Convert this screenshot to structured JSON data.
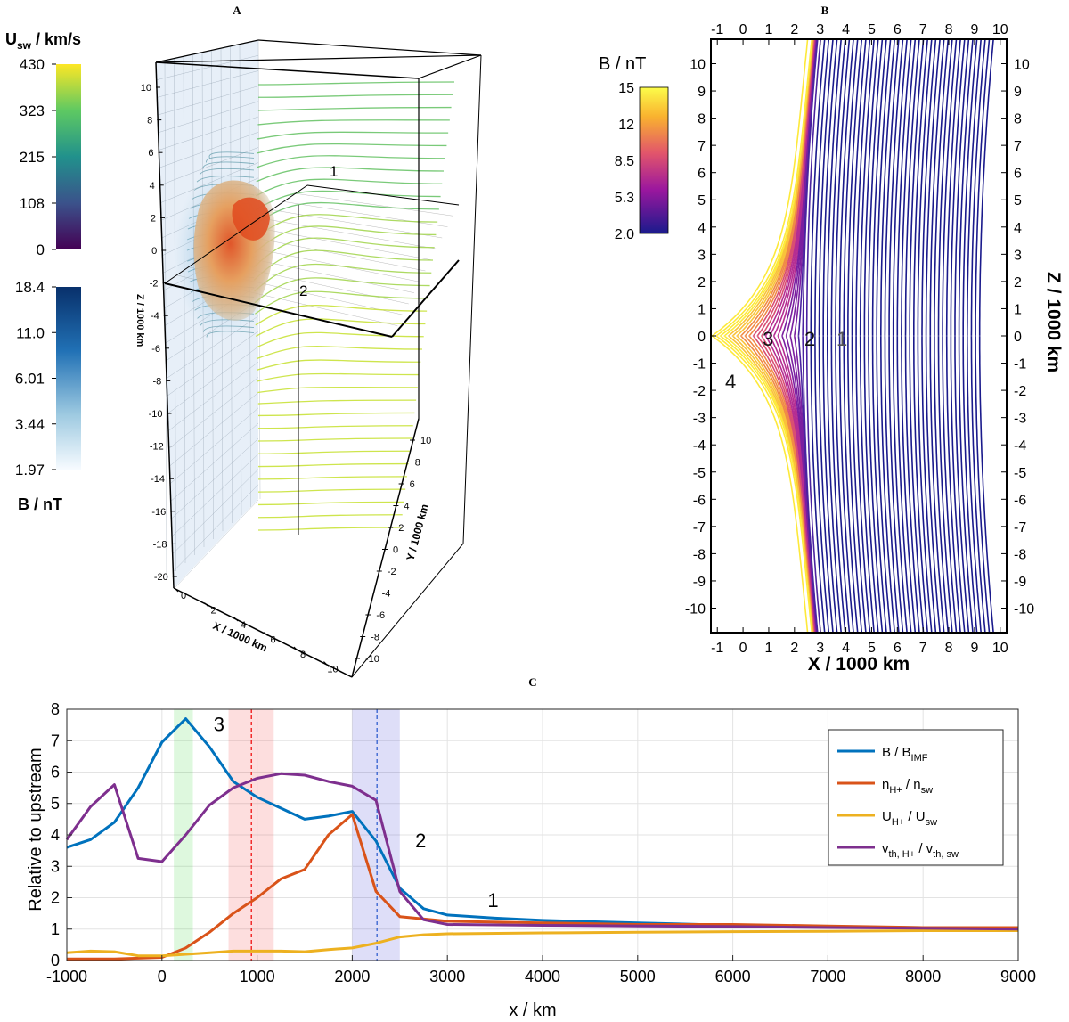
{
  "panels": {
    "a": "A",
    "b": "B",
    "c": "C"
  },
  "panel_a": {
    "usw_cbar": {
      "title": "U",
      "title_sub": "sw",
      "title_rest": " / km/s",
      "ticks": [
        "430",
        "323",
        "215",
        "108",
        "0"
      ]
    },
    "b_cbar": {
      "ticks": [
        "18.4",
        "11.0",
        "6.01",
        "3.44",
        "1.97"
      ],
      "label": "B / nT"
    },
    "z_ticks": [
      "10",
      "8",
      "6",
      "4",
      "2",
      "0",
      "-2",
      "-4",
      "-6",
      "-8",
      "-10",
      "-12",
      "-14",
      "-16",
      "-18",
      "-20"
    ],
    "x_ticks": [
      "0",
      "2",
      "4",
      "6",
      "8",
      "10"
    ],
    "y_ticks": [
      "10",
      "8",
      "6",
      "4",
      "2",
      "0",
      "-2",
      "-4",
      "-6",
      "-8",
      "-10"
    ],
    "z_label": "Z / 1000 km",
    "x_label": "X / 1000 km",
    "y_label": "Y / 1000 km",
    "markers": [
      "1",
      "2"
    ]
  },
  "panel_b": {
    "cbar_label": "B / nT",
    "cbar_ticks": [
      "15",
      "12",
      "8.5",
      "5.3",
      "2.0"
    ],
    "x_ticks": [
      "-1",
      "0",
      "1",
      "2",
      "3",
      "4",
      "5",
      "6",
      "7",
      "8",
      "9",
      "10"
    ],
    "z_ticks": [
      "10",
      "9",
      "8",
      "7",
      "6",
      "5",
      "4",
      "3",
      "2",
      "1",
      "0",
      "-1",
      "-2",
      "-3",
      "-4",
      "-5",
      "-6",
      "-7",
      "-8",
      "-9",
      "-10"
    ],
    "x_label": "X / 1000 km",
    "z_label": "Z / 1000 km",
    "markers": [
      "1",
      "2",
      "3",
      "4"
    ]
  },
  "colors": {
    "b": "#0072BD",
    "n": "#D95319",
    "u": "#EDB120",
    "vth": "#7E2F8E",
    "field_dark": "#1a1a8c"
  },
  "chart_data": {
    "type": "line",
    "title": "C",
    "xlabel": "x / km",
    "ylabel": "Relative to upstream",
    "xlim": [
      -1000,
      9000
    ],
    "ylim": [
      0,
      8
    ],
    "grid": true,
    "legend_position": "top-right",
    "x_ticks": [
      -1000,
      0,
      1000,
      2000,
      3000,
      4000,
      5000,
      6000,
      7000,
      8000,
      9000
    ],
    "y_ticks": [
      0,
      1,
      2,
      3,
      4,
      5,
      6,
      7,
      8
    ],
    "shaded_bands": [
      {
        "x0": 125,
        "x1": 325,
        "color": "#00cc00"
      },
      {
        "x0": 700,
        "x1": 1175,
        "color": "#ee0000"
      },
      {
        "x0": 2000,
        "x1": 2500,
        "color": "#0000cc"
      }
    ],
    "vlines": [
      {
        "x": 940,
        "color": "#ee0000"
      },
      {
        "x": 2260,
        "color": "#2255cc"
      }
    ],
    "annotations": [
      {
        "text": "3",
        "x": 600,
        "y": 7.3
      },
      {
        "text": "2",
        "x": 2720,
        "y": 3.6
      },
      {
        "text": "1",
        "x": 3480,
        "y": 1.7
      }
    ],
    "series": [
      {
        "name": "B / B",
        "sub": "IMF",
        "color_key": "b",
        "x": [
          -1000,
          -750,
          -500,
          -250,
          0,
          250,
          500,
          750,
          1000,
          1250,
          1500,
          1750,
          2000,
          2250,
          2500,
          2750,
          3000,
          3500,
          4000,
          5000,
          6000,
          7000,
          8000,
          9000
        ],
        "y": [
          3.6,
          3.85,
          4.4,
          5.5,
          6.95,
          7.7,
          6.8,
          5.7,
          5.2,
          4.85,
          4.5,
          4.6,
          4.75,
          3.8,
          2.3,
          1.65,
          1.45,
          1.35,
          1.28,
          1.2,
          1.12,
          1.07,
          1.05,
          1.05
        ]
      },
      {
        "name": "n",
        "sub": "H+",
        "rest": " / n",
        "sub2": "sw",
        "color_key": "n",
        "x": [
          -1000,
          -500,
          0,
          250,
          500,
          750,
          1000,
          1250,
          1500,
          1750,
          2000,
          2250,
          2500,
          3000,
          4000,
          5000,
          6000,
          7000,
          8000,
          9000
        ],
        "y": [
          0.05,
          0.05,
          0.1,
          0.4,
          0.9,
          1.5,
          2.0,
          2.6,
          2.9,
          4.0,
          4.65,
          2.2,
          1.4,
          1.25,
          1.2,
          1.15,
          1.15,
          1.1,
          1.05,
          1.05
        ]
      },
      {
        "name": "U",
        "sub": "H+",
        "rest": " / U",
        "sub2": "sw",
        "color_key": "u",
        "x": [
          -1000,
          -750,
          -500,
          -250,
          0,
          250,
          500,
          750,
          1000,
          1250,
          1500,
          1750,
          2000,
          2250,
          2500,
          2750,
          3000,
          4000,
          5000,
          6000,
          7000,
          8000,
          9000
        ],
        "y": [
          0.25,
          0.3,
          0.28,
          0.15,
          0.15,
          0.2,
          0.25,
          0.3,
          0.3,
          0.3,
          0.28,
          0.35,
          0.4,
          0.55,
          0.75,
          0.82,
          0.85,
          0.88,
          0.9,
          0.92,
          0.93,
          0.95,
          0.95
        ]
      },
      {
        "name": "v",
        "sub": "th, H+",
        "rest": " / v",
        "sub2": "th, sw",
        "color_key": "vth",
        "x": [
          -1000,
          -750,
          -500,
          -250,
          0,
          250,
          500,
          750,
          1000,
          1250,
          1500,
          1750,
          2000,
          2250,
          2500,
          2750,
          3000,
          4000,
          5000,
          6000,
          7000,
          8000,
          9000
        ],
        "y": [
          3.85,
          4.9,
          5.6,
          3.25,
          3.15,
          4.0,
          4.95,
          5.5,
          5.8,
          5.95,
          5.9,
          5.7,
          5.55,
          5.1,
          2.2,
          1.3,
          1.15,
          1.12,
          1.1,
          1.08,
          1.05,
          1.03,
          1.0
        ]
      }
    ]
  }
}
